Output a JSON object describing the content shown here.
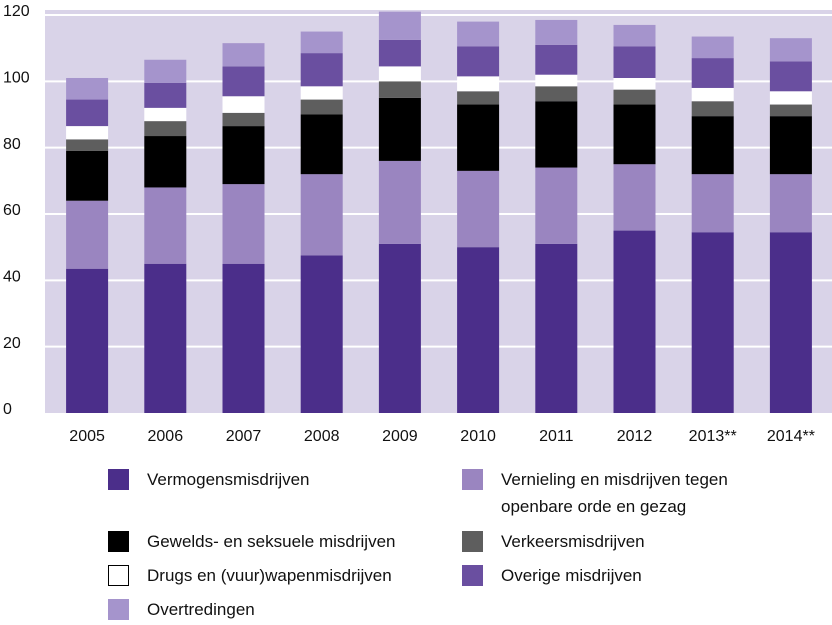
{
  "chart_data": {
    "type": "stacked-bar",
    "categories": [
      "2005",
      "2006",
      "2007",
      "2008",
      "2009",
      "2010",
      "2011",
      "2012",
      "2013**",
      "2014**"
    ],
    "series": [
      {
        "name": "Vermogensmisdrijven",
        "color": "#4b2e8a",
        "values": [
          43.5,
          45,
          45,
          47.5,
          51,
          50,
          51,
          55,
          54.5,
          54.5
        ]
      },
      {
        "name": "Vernieling en misdrijven tegen openbare orde en gezag",
        "color": "#9a85c0",
        "values": [
          20.5,
          23,
          24,
          24.5,
          25,
          23,
          23,
          20,
          17.5,
          17.5
        ]
      },
      {
        "name": "Gewelds- en seksuele misdrijven",
        "color": "#000000",
        "values": [
          15,
          15.5,
          17.5,
          18,
          19,
          20,
          20,
          18,
          17.5,
          17.5
        ]
      },
      {
        "name": "Verkeersmisdrijven",
        "color": "#5e5e5e",
        "values": [
          3.5,
          4.5,
          4,
          4.5,
          5,
          4,
          4.5,
          4.5,
          4.5,
          3.5
        ]
      },
      {
        "name": "Drugs en (vuur)wapenmisdrijven",
        "color": "#ffffff",
        "values": [
          4,
          4,
          5,
          4,
          4.5,
          4.5,
          3.5,
          3.5,
          4,
          4
        ]
      },
      {
        "name": "Overige misdrijven",
        "color": "#6a4fa0",
        "values": [
          8,
          7.5,
          9,
          10,
          8,
          9,
          9,
          9.5,
          9,
          9
        ]
      },
      {
        "name": "Overtredingen",
        "color": "#a594cc",
        "values": [
          6.5,
          7,
          7,
          6.5,
          8.5,
          7.5,
          7.5,
          6.5,
          6.5,
          7
        ]
      }
    ],
    "ylim": [
      0,
      121.5
    ],
    "yticks": [
      0,
      20,
      40,
      60,
      80,
      100,
      120
    ],
    "grid": true
  }
}
